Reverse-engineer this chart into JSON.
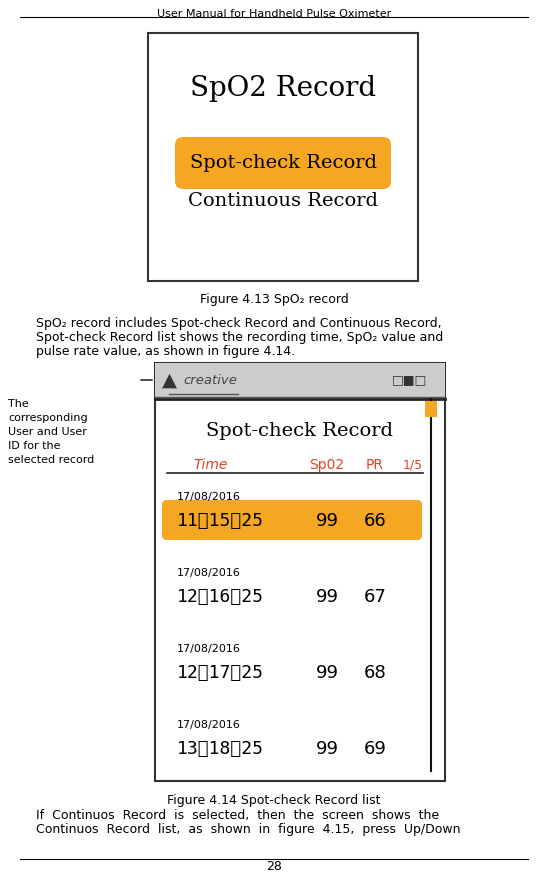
{
  "title_header": "User Manual for Handheld Pulse Oximeter",
  "page_number": "28",
  "fig1_title": "SpO2 Record",
  "fig1_btn1": "Spot-check Record",
  "fig1_btn2": "Continuous Record",
  "fig1_caption": "Figure 4.13 SpO₂ record",
  "para1_l1": "SpO₂ record includes Spot-check Record and Continuous Record,",
  "para1_l2": "Spot-check Record list shows the recording time, SpO₂ value and",
  "para1_l3": "pulse rate value, as shown in figure 4.14.",
  "fig2_title": "Spot-check Record",
  "fig2_user": "creative",
  "fig2_header_time": "Time",
  "fig2_header_spo2": "Sp02",
  "fig2_header_pr": "PR",
  "fig2_page": "1/5",
  "fig2_rows": [
    {
      "date": "17/08/2016",
      "time": "11：15：25",
      "spo2": "99",
      "pr": "66",
      "highlight": true
    },
    {
      "date": "17/08/2016",
      "time": "12：16：25",
      "spo2": "99",
      "pr": "67",
      "highlight": false
    },
    {
      "date": "17/08/2016",
      "time": "12：17：25",
      "spo2": "99",
      "pr": "68",
      "highlight": false
    },
    {
      "date": "17/08/2016",
      "time": "13：18：25",
      "spo2": "99",
      "pr": "69",
      "highlight": false
    }
  ],
  "fig2_caption": "Figure 4.14 Spot-check Record list",
  "annotation_text": "The\ncorresponding\nUser and User\nID for the\nselected record",
  "para2_l1": "If  Continuos  Record  is  selected,  then  the  screen  shows  the",
  "para2_l2": "Continuos  Record  list,  as  shown  in  figure  4.15,  press  Up/Down",
  "orange_color": "#F5A623",
  "red_color": "#E84025",
  "border_color": "#222222",
  "status_bar_color": "#CCCCCC",
  "scrollbar_line_color": "#111111",
  "scrollbar_thumb_color": "#F5A623"
}
